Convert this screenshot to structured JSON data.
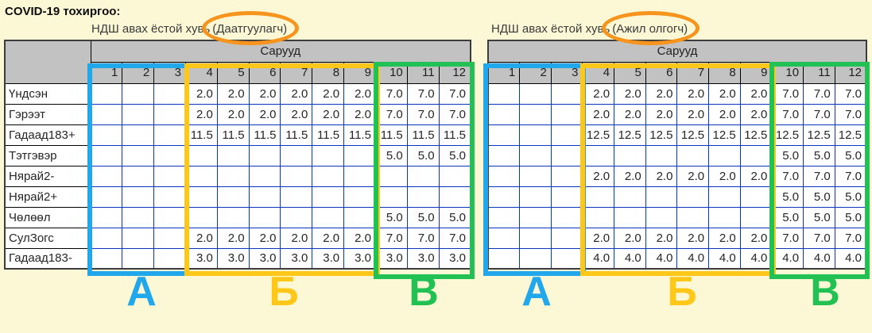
{
  "title": "COVID-19 тохиргоо:",
  "months_header": "Сарууд",
  "columns": [
    "1",
    "2",
    "3",
    "4",
    "5",
    "6",
    "7",
    "8",
    "9",
    "10",
    "11",
    "12"
  ],
  "row_labels": [
    "Үндсэн",
    "Гэрээт",
    "Гадаад183+",
    "Тэтгэвэр",
    "Нярай2-",
    "Нярай2+",
    "Чөлөөл",
    "СулЗогс",
    "Гадаад183-"
  ],
  "tables": [
    {
      "id": "insured",
      "subtitle_prefix": "НДШ авах ёстой хувь",
      "subtitle_circled": "(Даатгуулагч)",
      "rows": [
        [
          "",
          "",
          "",
          "2.0",
          "2.0",
          "2.0",
          "2.0",
          "2.0",
          "2.0",
          "7.0",
          "7.0",
          "7.0"
        ],
        [
          "",
          "",
          "",
          "2.0",
          "2.0",
          "2.0",
          "2.0",
          "2.0",
          "2.0",
          "7.0",
          "7.0",
          "7.0"
        ],
        [
          "",
          "",
          "",
          "11.5",
          "11.5",
          "11.5",
          "11.5",
          "11.5",
          "11.5",
          "11.5",
          "11.5",
          "11.5"
        ],
        [
          "",
          "",
          "",
          "",
          "",
          "",
          "",
          "",
          "",
          "5.0",
          "5.0",
          "5.0"
        ],
        [
          "",
          "",
          "",
          "",
          "",
          "",
          "",
          "",
          "",
          "",
          "",
          ""
        ],
        [
          "",
          "",
          "",
          "",
          "",
          "",
          "",
          "",
          "",
          "",
          "",
          ""
        ],
        [
          "",
          "",
          "",
          "",
          "",
          "",
          "",
          "",
          "",
          "5.0",
          "5.0",
          "5.0"
        ],
        [
          "",
          "",
          "",
          "2.0",
          "2.0",
          "2.0",
          "2.0",
          "2.0",
          "2.0",
          "7.0",
          "7.0",
          "7.0"
        ],
        [
          "",
          "",
          "",
          "3.0",
          "3.0",
          "3.0",
          "3.0",
          "3.0",
          "3.0",
          "3.0",
          "3.0",
          "3.0"
        ]
      ]
    },
    {
      "id": "employer",
      "subtitle_prefix": "НДШ авах ёстой хувь",
      "subtitle_circled": "(Ажил олгогч)",
      "rows": [
        [
          "",
          "",
          "",
          "2.0",
          "2.0",
          "2.0",
          "2.0",
          "2.0",
          "2.0",
          "7.0",
          "7.0",
          "7.0"
        ],
        [
          "",
          "",
          "",
          "2.0",
          "2.0",
          "2.0",
          "2.0",
          "2.0",
          "2.0",
          "7.0",
          "7.0",
          "7.0"
        ],
        [
          "",
          "",
          "",
          "12.5",
          "12.5",
          "12.5",
          "12.5",
          "12.5",
          "12.5",
          "12.5",
          "12.5",
          "12.5"
        ],
        [
          "",
          "",
          "",
          "",
          "",
          "",
          "",
          "",
          "",
          "5.0",
          "5.0",
          "5.0"
        ],
        [
          "",
          "",
          "",
          "2.0",
          "2.0",
          "2.0",
          "2.0",
          "2.0",
          "2.0",
          "7.0",
          "7.0",
          "7.0"
        ],
        [
          "",
          "",
          "",
          "",
          "",
          "",
          "",
          "",
          "",
          "5.0",
          "5.0",
          "5.0"
        ],
        [
          "",
          "",
          "",
          "",
          "",
          "",
          "",
          "",
          "",
          "5.0",
          "5.0",
          "5.0"
        ],
        [
          "",
          "",
          "",
          "2.0",
          "2.0",
          "2.0",
          "2.0",
          "2.0",
          "2.0",
          "7.0",
          "7.0",
          "7.0"
        ],
        [
          "",
          "",
          "",
          "4.0",
          "4.0",
          "4.0",
          "4.0",
          "4.0",
          "4.0",
          "4.0",
          "4.0",
          "4.0"
        ]
      ]
    }
  ],
  "regions": [
    {
      "letter": "А",
      "color": "#21A8EC",
      "columns": "1-3"
    },
    {
      "letter": "Б",
      "color": "#FFC717",
      "columns": "4-9"
    },
    {
      "letter": "В",
      "color": "#21C153",
      "columns": "10-12"
    }
  ],
  "annotation_color": "#F7941E",
  "grid_line_color": "#0A34C4",
  "header_bg": "#C2C2C2",
  "background": "#FCF8D6"
}
